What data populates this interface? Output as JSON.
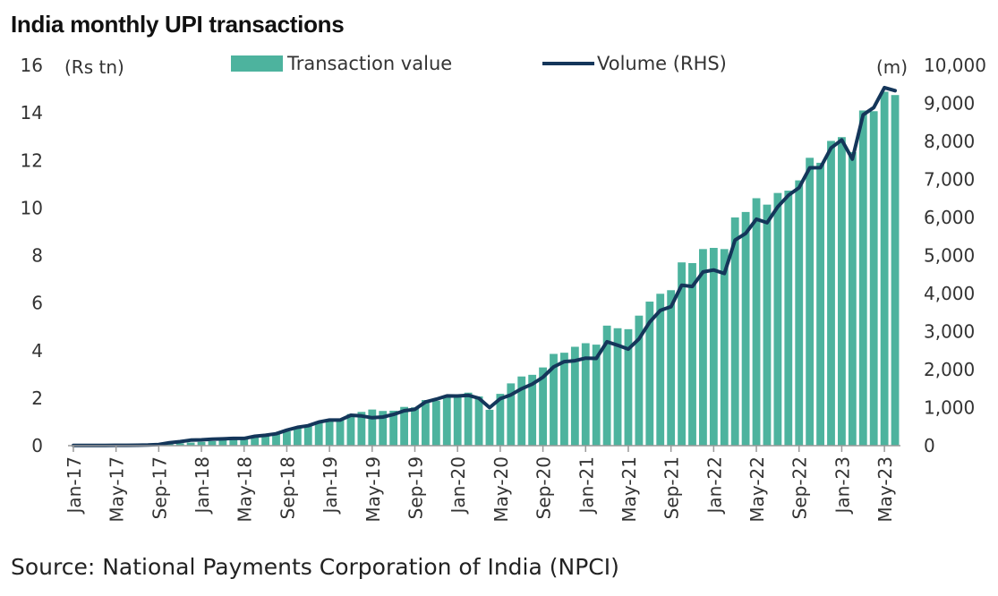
{
  "title": "India monthly UPI transactions",
  "source": "Source: National Payments Corporation of India (NPCI)",
  "colors": {
    "bar": "#4db39e",
    "line": "#14365a",
    "axis": "#999999"
  },
  "chart_data": {
    "type": "bar+line",
    "left_axis_unit": "(Rs tn)",
    "right_axis_unit": "(m)",
    "left_ylim": [
      0,
      16
    ],
    "right_ylim": [
      0,
      10000
    ],
    "left_ticks": [
      "0",
      "2",
      "4",
      "6",
      "8",
      "10",
      "12",
      "14",
      "16"
    ],
    "right_ticks": [
      "0",
      "1,000",
      "2,000",
      "3,000",
      "4,000",
      "5,000",
      "6,000",
      "7,000",
      "8,000",
      "9,000",
      "10,000"
    ],
    "x_tick_labels": [
      "Jan-17",
      "May-17",
      "Sep-17",
      "Jan-18",
      "May-18",
      "Sep-18",
      "Jan-19",
      "May-19",
      "Sep-19",
      "Jan-20",
      "May-20",
      "Sep-20",
      "Jan-21",
      "May-21",
      "Sep-21",
      "Jan-22",
      "May-22",
      "Sep-22",
      "Jan-23",
      "May-23"
    ],
    "grid": false,
    "legend_position": "top",
    "categories": [
      "Jan-17",
      "Feb-17",
      "Mar-17",
      "Apr-17",
      "May-17",
      "Jun-17",
      "Jul-17",
      "Aug-17",
      "Sep-17",
      "Oct-17",
      "Nov-17",
      "Dec-17",
      "Jan-18",
      "Feb-18",
      "Mar-18",
      "Apr-18",
      "May-18",
      "Jun-18",
      "Jul-18",
      "Aug-18",
      "Sep-18",
      "Oct-18",
      "Nov-18",
      "Dec-18",
      "Jan-19",
      "Feb-19",
      "Mar-19",
      "Apr-19",
      "May-19",
      "Jun-19",
      "Jul-19",
      "Aug-19",
      "Sep-19",
      "Oct-19",
      "Nov-19",
      "Dec-19",
      "Jan-20",
      "Feb-20",
      "Mar-20",
      "Apr-20",
      "May-20",
      "Jun-20",
      "Jul-20",
      "Aug-20",
      "Sep-20",
      "Oct-20",
      "Nov-20",
      "Dec-20",
      "Jan-21",
      "Feb-21",
      "Mar-21",
      "Apr-21",
      "May-21",
      "Jun-21",
      "Jul-21",
      "Aug-21",
      "Sep-21",
      "Oct-21",
      "Nov-21",
      "Dec-21",
      "Jan-22",
      "Feb-22",
      "Mar-22",
      "Apr-22",
      "May-22",
      "Jun-22",
      "Jul-22",
      "Aug-22",
      "Sep-22",
      "Oct-22",
      "Nov-22",
      "Dec-22",
      "Jan-23",
      "Feb-23",
      "Mar-23",
      "Apr-23",
      "May-23",
      "Jun-23"
    ],
    "series": [
      {
        "name": "Transaction value",
        "type": "bar",
        "axis": "left",
        "values": [
          0.02,
          0.02,
          0.02,
          0.01,
          0.03,
          0.03,
          0.04,
          0.04,
          0.05,
          0.07,
          0.1,
          0.13,
          0.16,
          0.19,
          0.24,
          0.27,
          0.33,
          0.4,
          0.46,
          0.54,
          0.6,
          0.75,
          0.82,
          1.02,
          1.09,
          1.07,
          1.33,
          1.42,
          1.52,
          1.46,
          1.47,
          1.63,
          1.61,
          1.92,
          1.89,
          2.02,
          2.16,
          2.23,
          2.07,
          1.51,
          2.18,
          2.62,
          2.91,
          2.98,
          3.29,
          3.86,
          3.91,
          4.16,
          4.31,
          4.25,
          5.05,
          4.94,
          4.9,
          5.47,
          6.06,
          6.39,
          6.54,
          7.71,
          7.68,
          8.27,
          8.32,
          8.27,
          9.6,
          9.83,
          10.41,
          10.14,
          10.63,
          10.73,
          11.16,
          12.11,
          11.9,
          12.82,
          12.98,
          12.35,
          14.1,
          14.07,
          14.89,
          14.75
        ]
      },
      {
        "name": "Volume (RHS)",
        "type": "line",
        "axis": "right",
        "values": [
          4,
          4,
          6,
          7,
          9,
          10,
          12,
          17,
          31,
          77,
          105,
          146,
          152,
          171,
          178,
          190,
          190,
          246,
          274,
          312,
          406,
          482,
          525,
          620,
          672,
          674,
          800,
          782,
          734,
          754,
          822,
          918,
          955,
          1148,
          1220,
          1308,
          1305,
          1325,
          1247,
          999,
          1235,
          1337,
          1497,
          1618,
          1800,
          2071,
          2210,
          2234,
          2302,
          2293,
          2731,
          2641,
          2540,
          2808,
          3248,
          3556,
          3655,
          4218,
          4186,
          4566,
          4618,
          4527,
          5405,
          5580,
          5955,
          5862,
          6280,
          6580,
          6780,
          7305,
          7309,
          7829,
          8037,
          7534,
          8700,
          8890,
          9415,
          9335
        ]
      }
    ]
  }
}
